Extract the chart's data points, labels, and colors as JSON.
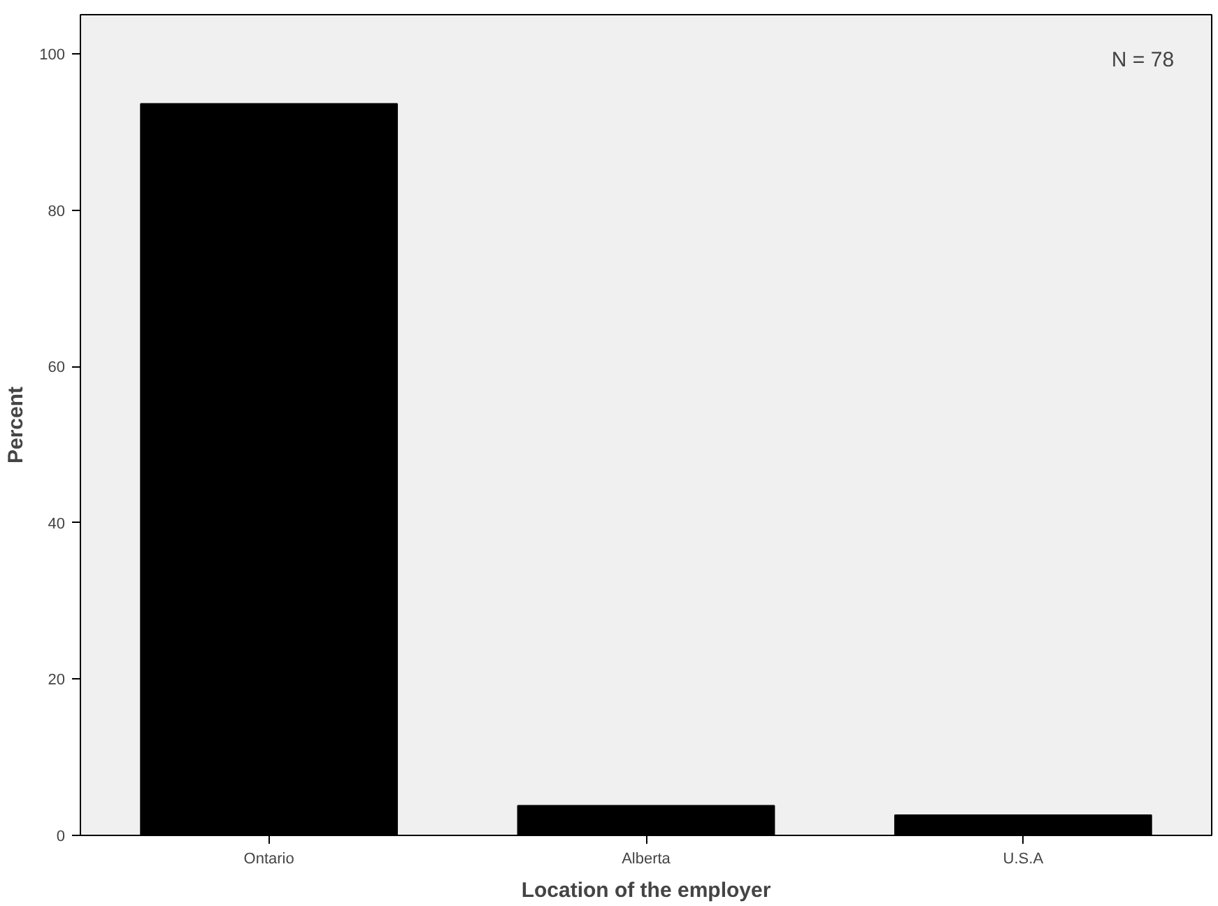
{
  "chart_data": {
    "type": "bar",
    "xlabel": "Location of the employer",
    "ylabel": "Percent",
    "categories": [
      "Ontario",
      "Alberta",
      "U.S.A"
    ],
    "values": [
      93.6,
      3.8,
      2.6
    ],
    "color": "#000000",
    "ylim": [
      0,
      105
    ],
    "yticks": [
      0,
      20,
      40,
      60,
      80,
      100
    ],
    "grid": false,
    "annotations": [
      "N = 78"
    ]
  }
}
